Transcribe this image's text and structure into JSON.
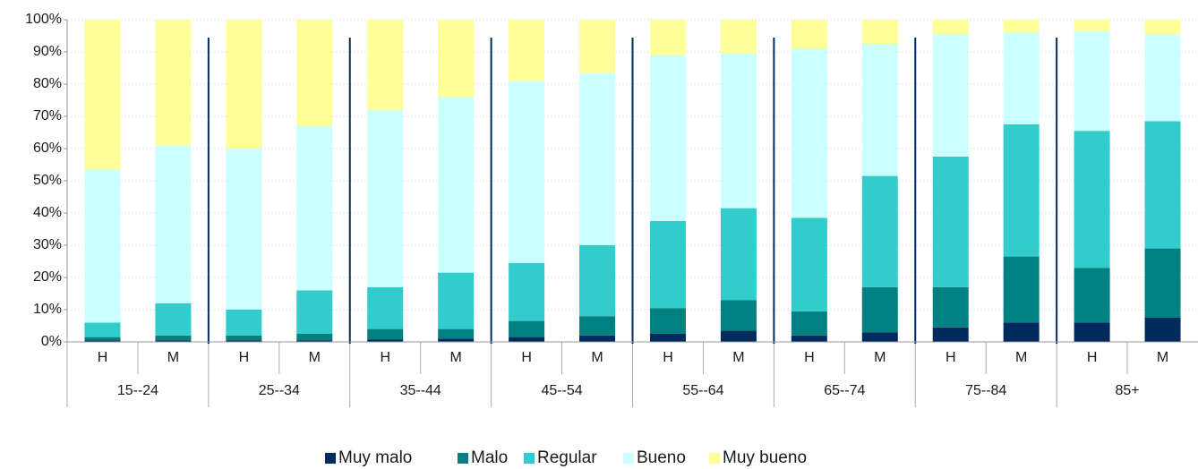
{
  "chart_data": {
    "type": "stacked_bar",
    "categories": [
      "H",
      "M",
      "H",
      "M",
      "H",
      "M",
      "H",
      "M",
      "H",
      "M",
      "H",
      "M",
      "H",
      "M",
      "H",
      "M"
    ],
    "groups": [
      "15--24",
      "25--34",
      "35--44",
      "45--54",
      "55--64",
      "65--74",
      "75--84",
      "85+"
    ],
    "series": [
      {
        "name": "Muy malo",
        "color": "#002b5c",
        "values": [
          0.5,
          0.5,
          0.5,
          0.5,
          0.7,
          1,
          1.5,
          2,
          2.5,
          3.5,
          2,
          3,
          4.5,
          6,
          6,
          7.5
        ]
      },
      {
        "name": "Malo",
        "color": "#008080",
        "values": [
          1,
          1.5,
          1.5,
          2,
          3.3,
          3,
          5,
          6,
          8,
          9.5,
          7.5,
          14,
          12.5,
          20.5,
          17,
          21.5
        ]
      },
      {
        "name": "Regular",
        "color": "#33cccc",
        "values": [
          4.5,
          10,
          8,
          13.5,
          13,
          17.5,
          18,
          22,
          27,
          28.5,
          29,
          34.5,
          40.5,
          41,
          42.5,
          39.5
        ]
      },
      {
        "name": "Bueno",
        "color": "#ccffff",
        "values": [
          47.5,
          49,
          50,
          51,
          55,
          54.5,
          56.5,
          53.5,
          51.5,
          48,
          52.5,
          41,
          38,
          28.5,
          31,
          27
        ]
      },
      {
        "name": "Muy bueno",
        "color": "#ffff99",
        "values": [
          46.5,
          39,
          40,
          33,
          28,
          24,
          19,
          16.5,
          11,
          10.5,
          9,
          7.5,
          4.5,
          4,
          3.5,
          4.5
        ]
      }
    ],
    "ylim": [
      0,
      100
    ],
    "yticks": [
      {
        "value": 0,
        "label": "0%"
      },
      {
        "value": 10,
        "label": "10%"
      },
      {
        "value": 20,
        "label": "20%"
      },
      {
        "value": 30,
        "label": "30%"
      },
      {
        "value": 40,
        "label": "40%"
      },
      {
        "value": 50,
        "label": "50%"
      },
      {
        "value": 60,
        "label": "60%"
      },
      {
        "value": 70,
        "label": "70%"
      },
      {
        "value": 80,
        "label": "80%"
      },
      {
        "value": 90,
        "label": "90%"
      },
      {
        "value": 100,
        "label": "100%"
      }
    ],
    "grid": true,
    "legend": "bottom"
  }
}
